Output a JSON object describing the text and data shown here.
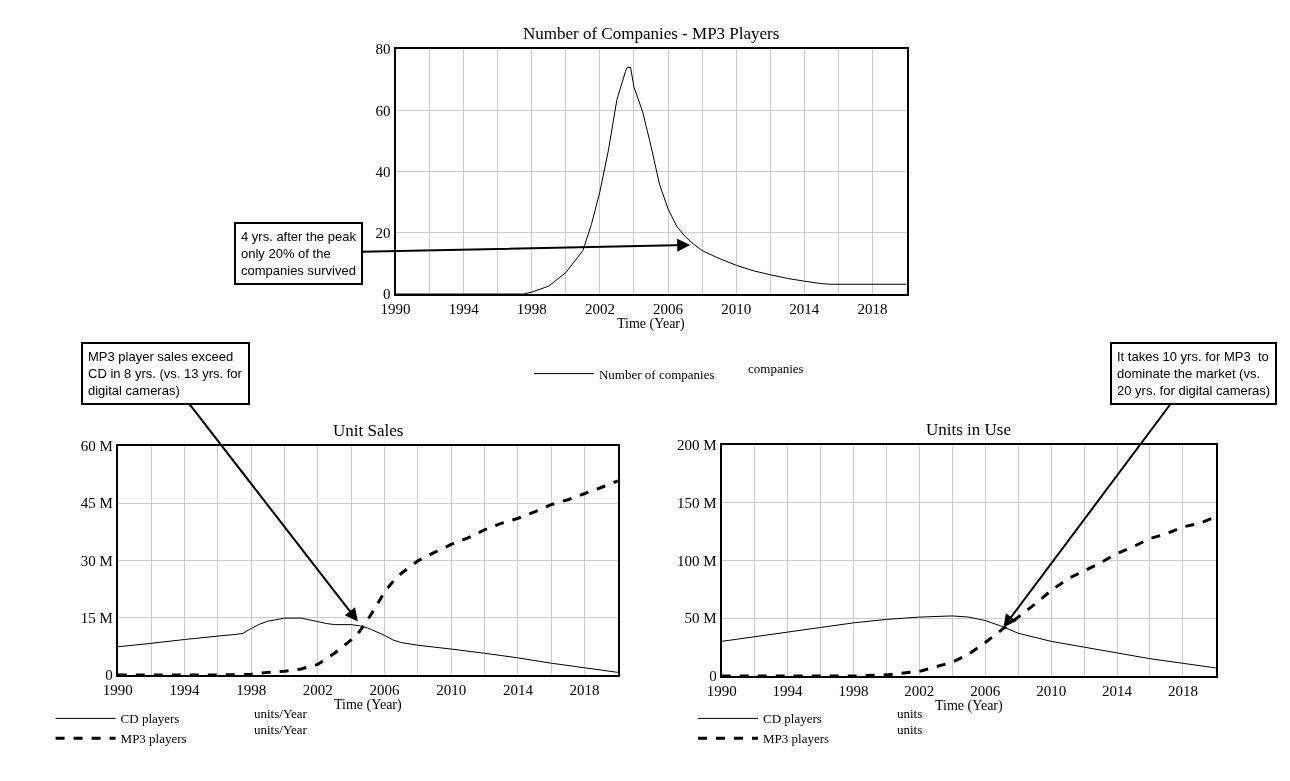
{
  "chart_data": [
    {
      "type": "line",
      "title": "Number of Companies - MP3 Players",
      "xlabel": "Time (Year)",
      "xlim": [
        1990,
        2020
      ],
      "xticks": [
        1990,
        {
          "value": 1992,
          "label": null
        },
        1994,
        {
          "value": 1996,
          "label": null
        },
        1998,
        {
          "value": 2000,
          "label": null
        },
        2002,
        {
          "value": 2004,
          "label": null
        },
        2006,
        {
          "value": 2008,
          "label": null
        },
        2010,
        {
          "value": 2012,
          "label": null
        },
        2014,
        {
          "value": 2016,
          "label": null
        },
        2018,
        {
          "value": 2020,
          "label": null
        }
      ],
      "ylim": [
        0,
        80
      ],
      "yticks": [
        0,
        20,
        40,
        60,
        80
      ],
      "grid": true,
      "legend": "bottom",
      "marker": "none",
      "series": [
        {
          "name": "Number of companies",
          "color": "#000000",
          "line_style": "solid",
          "x": [
            1990,
            1997.5,
            1998,
            1999,
            2000,
            2001,
            2001.5,
            2002,
            2002.5,
            2003,
            2003.5,
            2003.6,
            2003.8,
            2004,
            2004.5,
            2005,
            2005.5,
            2006,
            2006.5,
            2007,
            2007.5,
            2008,
            2009,
            2010,
            2011,
            2012,
            2013,
            2014,
            2015,
            2015.5,
            2020
          ],
          "values": [
            0,
            0,
            0.6,
            2.6,
            7,
            14.2,
            22.7,
            33.5,
            47,
            63.6,
            72.7,
            74,
            74,
            67.6,
            59.7,
            48.3,
            35.8,
            27.8,
            22.2,
            18.8,
            16.3,
            14.2,
            11.6,
            9.4,
            7.6,
            6.3,
            5.1,
            4.2,
            3.4,
            3.2,
            3.2
          ]
        }
      ],
      "annotations": [
        {
          "text": "4 yrs. after the peak\nonly 20% of the\ncompanies survived",
          "x": 2007.3,
          "y": 16
        },
        "companies"
      ]
    },
    {
      "type": "line",
      "title": "Unit Sales",
      "xlabel": "Time (Year)",
      "xlim": [
        1990,
        2020
      ],
      "xticks": [
        1990,
        {
          "value": 1992,
          "label": null
        },
        1994,
        {
          "value": 1996,
          "label": null
        },
        1998,
        {
          "value": 2000,
          "label": null
        },
        2002,
        {
          "value": 2004,
          "label": null
        },
        2006,
        {
          "value": 2008,
          "label": null
        },
        2010,
        {
          "value": 2012,
          "label": null
        },
        2014,
        {
          "value": 2016,
          "label": null
        },
        2018,
        {
          "value": 2020,
          "label": null
        }
      ],
      "ylim": [
        0,
        60000000
      ],
      "yticks": [
        0,
        {
          "value": 15000000,
          "label": "15 M"
        },
        {
          "value": 30000000,
          "label": "30 M"
        },
        {
          "value": 45000000,
          "label": "45 M"
        },
        {
          "value": 60000000,
          "label": "60 M"
        }
      ],
      "grid": true,
      "legend": "bottom",
      "marker": "none",
      "series": [
        {
          "name": "CD players",
          "color": "#000000",
          "line_style": "solid",
          "x": [
            1990,
            1992,
            1994,
            1996,
            1997,
            1997.5,
            1998,
            1998.5,
            1999,
            2000,
            2001,
            2002,
            2002.5,
            2003,
            2004,
            2004.5,
            2005,
            2006,
            2006.5,
            2007,
            2008,
            2010,
            2012,
            2014,
            2016,
            2018,
            2020
          ],
          "values": [
            7400000,
            8300000,
            9300000,
            10200000,
            10600000,
            10900000,
            12200000,
            13300000,
            14100000,
            14900000,
            14900000,
            14000000,
            13500000,
            13200000,
            13200000,
            12900000,
            12300000,
            10400000,
            9200000,
            8500000,
            7800000,
            6800000,
            5700000,
            4500000,
            3100000,
            1900000,
            700000
          ]
        },
        {
          "name": "MP3 players",
          "color": "#000000",
          "line_style": "dashed",
          "x": [
            1990,
            1996,
            1998,
            1999,
            2000,
            2001,
            2002,
            2003,
            2004,
            2004.5,
            2005,
            2005.5,
            2006,
            2006.5,
            2007,
            2008,
            2009,
            2010,
            2011,
            2012,
            2013,
            2014,
            2015,
            2016,
            2017,
            2018,
            2019,
            2020
          ],
          "values": [
            0,
            0,
            200000,
            700000,
            1000000,
            1600000,
            2800000,
            5700000,
            9200000,
            11400000,
            14500000,
            18000000,
            21800000,
            24400000,
            26600000,
            29900000,
            32100000,
            34200000,
            35900000,
            38000000,
            39700000,
            41000000,
            42700000,
            44600000,
            45900000,
            47500000,
            49100000,
            50800000
          ]
        }
      ],
      "annotations": [
        {
          "text": "MP3 player sales exceed\nCD in 8 yrs. (vs. 13 yrs. for\ndigital cameras)",
          "x": 2004.4,
          "y": 14000000
        },
        "units/Year",
        "units/Year"
      ]
    },
    {
      "type": "line",
      "title": "Units in Use",
      "xlabel": "Time (Year)",
      "xlim": [
        1990,
        2020
      ],
      "xticks": [
        1990,
        {
          "value": 1992,
          "label": null
        },
        1994,
        {
          "value": 1996,
          "label": null
        },
        1998,
        {
          "value": 2000,
          "label": null
        },
        2002,
        {
          "value": 2004,
          "label": null
        },
        2006,
        {
          "value": 2008,
          "label": null
        },
        2010,
        {
          "value": 2012,
          "label": null
        },
        2014,
        {
          "value": 2016,
          "label": null
        },
        2018,
        {
          "value": 2020,
          "label": null
        }
      ],
      "ylim": [
        0,
        200000000
      ],
      "yticks": [
        0,
        {
          "value": 50000000,
          "label": "50 M"
        },
        {
          "value": 100000000,
          "label": "100 M"
        },
        {
          "value": 150000000,
          "label": "150 M"
        },
        {
          "value": 200000000,
          "label": "200 M"
        }
      ],
      "grid": true,
      "legend": "bottom",
      "marker": "none",
      "series": [
        {
          "name": "CD players",
          "color": "#000000",
          "line_style": "solid",
          "x": [
            1990,
            1994,
            1996,
            1998,
            2000,
            2002,
            2004,
            2005,
            2006,
            2007,
            2008,
            2010,
            2012,
            2014,
            2016,
            2018,
            2020
          ],
          "values": [
            30000000,
            38000000,
            42000000,
            46000000,
            49000000,
            51000000,
            52000000,
            51000000,
            48000000,
            43000000,
            37000000,
            30000000,
            25000000,
            20000000,
            15000000,
            11000000,
            7000000
          ]
        },
        {
          "name": "MP3 players",
          "color": "#000000",
          "line_style": "dashed",
          "x": [
            1990,
            1998,
            2000,
            2002,
            2003,
            2004,
            2005,
            2006,
            2007,
            2008,
            2009,
            2010,
            2011,
            2012,
            2013,
            2014,
            2015,
            2016,
            2017,
            2018,
            2019,
            2020
          ],
          "values": [
            0,
            0,
            1000000,
            4000000,
            8000000,
            12000000,
            19000000,
            29000000,
            40000000,
            51000000,
            62000000,
            74000000,
            84000000,
            91000000,
            98000000,
            106000000,
            112000000,
            119000000,
            123000000,
            129000000,
            132000000,
            138000000
          ]
        }
      ],
      "annotations": [
        {
          "text": "It takes 10 yrs. for MP3  to\ndominate the market (vs.\n20 yrs. for digital cameras)",
          "x": 2007.1,
          "y": 42000000
        },
        "units",
        "units"
      ]
    }
  ]
}
